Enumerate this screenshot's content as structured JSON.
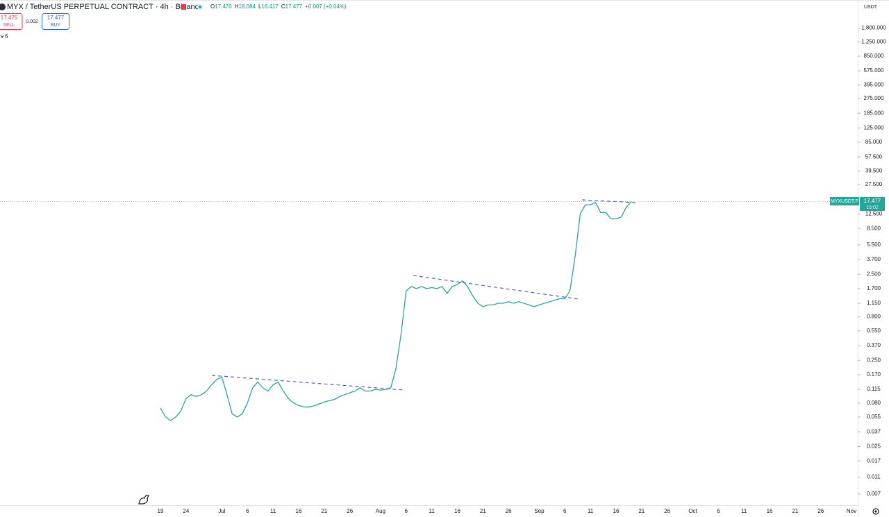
{
  "toolbar": {
    "symbol": "MYX / TetherUS PERPETUAL CONTRACT · 4h · Binance",
    "ohlc": [
      {
        "label": "O",
        "value": "17.470"
      },
      {
        "label": "H",
        "value": "18.084"
      },
      {
        "label": "L",
        "value": "16.417"
      },
      {
        "label": "C",
        "value": "17.477"
      }
    ],
    "change": "+0.007 (+0.04%)",
    "sell_price": "17.475",
    "sell_label": "SELL",
    "spread": "0.002",
    "buy_price": "17.477",
    "buy_label": "BUY",
    "indicator_count": "6",
    "currency": "USDT",
    "price_tag": {
      "symbol": "MYXUSDT.P",
      "price": "17.477",
      "countdown": "15:02"
    }
  },
  "chart_data": {
    "type": "line",
    "color": "#26a69a",
    "log_scale": true,
    "grid": false,
    "categories": [
      "19",
      null,
      null,
      null,
      null,
      "24",
      null,
      null,
      null,
      null,
      null,
      null,
      "Jul",
      null,
      null,
      null,
      null,
      "6",
      null,
      null,
      null,
      null,
      "11",
      null,
      null,
      null,
      null,
      "16",
      null,
      null,
      null,
      null,
      "21",
      null,
      null,
      null,
      null,
      "26",
      null,
      null,
      null,
      null,
      null,
      "Aug",
      null,
      null,
      null,
      null,
      "6",
      null,
      null,
      null,
      null,
      "11",
      null,
      null,
      null,
      null,
      "16",
      null,
      null,
      null,
      null,
      "21",
      null,
      null,
      null,
      null,
      "26",
      null,
      null,
      null,
      null,
      null,
      "Sep",
      null,
      null,
      null,
      null,
      "6",
      null,
      null,
      null,
      null,
      "11",
      null,
      null,
      null,
      null,
      "16",
      null,
      null,
      null,
      null,
      "21",
      null,
      null,
      null,
      null,
      "26",
      null,
      null,
      null,
      null,
      "Oct",
      null,
      null,
      null,
      null,
      "6",
      null,
      null,
      null,
      null,
      "11",
      null,
      null,
      null,
      null,
      "16",
      null,
      null,
      null,
      null,
      "21",
      null,
      null,
      null,
      null,
      "26",
      null,
      null,
      null,
      null,
      null,
      "Nov"
    ],
    "values": [
      0.07,
      0.055,
      0.05,
      0.055,
      0.065,
      0.09,
      0.1,
      0.095,
      0.1,
      0.11,
      0.13,
      0.15,
      0.16,
      0.1,
      0.06,
      0.055,
      0.06,
      0.08,
      0.12,
      0.14,
      0.12,
      0.11,
      0.13,
      0.14,
      0.11,
      0.09,
      0.08,
      0.075,
      0.072,
      0.072,
      0.074,
      0.078,
      0.082,
      0.085,
      0.088,
      0.095,
      0.1,
      0.105,
      0.11,
      0.12,
      0.11,
      0.11,
      0.115,
      0.113,
      0.115,
      0.12,
      0.2,
      0.5,
      1.6,
      1.8,
      1.7,
      1.8,
      1.7,
      1.75,
      1.7,
      1.8,
      1.5,
      1.8,
      1.9,
      2.1,
      1.8,
      1.4,
      1.15,
      1.05,
      1.1,
      1.1,
      1.15,
      1.15,
      1.2,
      1.15,
      1.2,
      1.15,
      1.1,
      1.05,
      1.1,
      1.15,
      1.2,
      1.25,
      1.3,
      1.3,
      1.6,
      4,
      12.5,
      16,
      16,
      17,
      13,
      13,
      11,
      11,
      11.5,
      15,
      17.477,
      null,
      null,
      null,
      null,
      null,
      null,
      null,
      null,
      null,
      null,
      null,
      null,
      null,
      null,
      null,
      null,
      null,
      null,
      null,
      null,
      null,
      null,
      null,
      null,
      null,
      null,
      null,
      null,
      null,
      null,
      null,
      null,
      null,
      null,
      null,
      null,
      null,
      null,
      null,
      null,
      null,
      null,
      null
    ],
    "ylim": [
      0.0052,
      3820
    ],
    "yticks": [
      {
        "value": 0.007,
        "label": "0.007"
      },
      {
        "value": 0.011,
        "label": "0.011"
      },
      {
        "value": 0.017,
        "label": "0.017"
      },
      {
        "value": 0.025,
        "label": "0.025"
      },
      {
        "value": 0.037,
        "label": "0.037"
      },
      {
        "value": 0.055,
        "label": "0.055"
      },
      {
        "value": 0.08,
        "label": "0.080"
      },
      {
        "value": 0.115,
        "label": "0.115"
      },
      {
        "value": 0.17,
        "label": "0.170"
      },
      {
        "value": 0.25,
        "label": "0.250"
      },
      {
        "value": 0.37,
        "label": "0.370"
      },
      {
        "value": 0.55,
        "label": "0.550"
      },
      {
        "value": 0.8,
        "label": "0.800"
      },
      {
        "value": 1.15,
        "label": "1.150"
      },
      {
        "value": 1.7,
        "label": "1.700"
      },
      {
        "value": 2.5,
        "label": "2.500"
      },
      {
        "value": 3.7,
        "label": "3.700"
      },
      {
        "value": 5.5,
        "label": "5.500"
      },
      {
        "value": 8.5,
        "label": "8.500"
      },
      {
        "value": 12.5,
        "label": "12.500"
      },
      {
        "value": 27.5,
        "label": "27.500"
      },
      {
        "value": 39.5,
        "label": "39.500"
      },
      {
        "value": 57.5,
        "label": "57.500"
      },
      {
        "value": 85,
        "label": "85.000"
      },
      {
        "value": 125,
        "label": "125.000"
      },
      {
        "value": 185,
        "label": "185.000"
      },
      {
        "value": 275,
        "label": "275.000"
      },
      {
        "value": 395,
        "label": "395.000"
      },
      {
        "value": 575,
        "label": "575.000"
      },
      {
        "value": 850,
        "label": "850.000"
      },
      {
        "value": 1250,
        "label": "1,250.000"
      },
      {
        "value": 1800,
        "label": "1,800.000"
      }
    ]
  }
}
